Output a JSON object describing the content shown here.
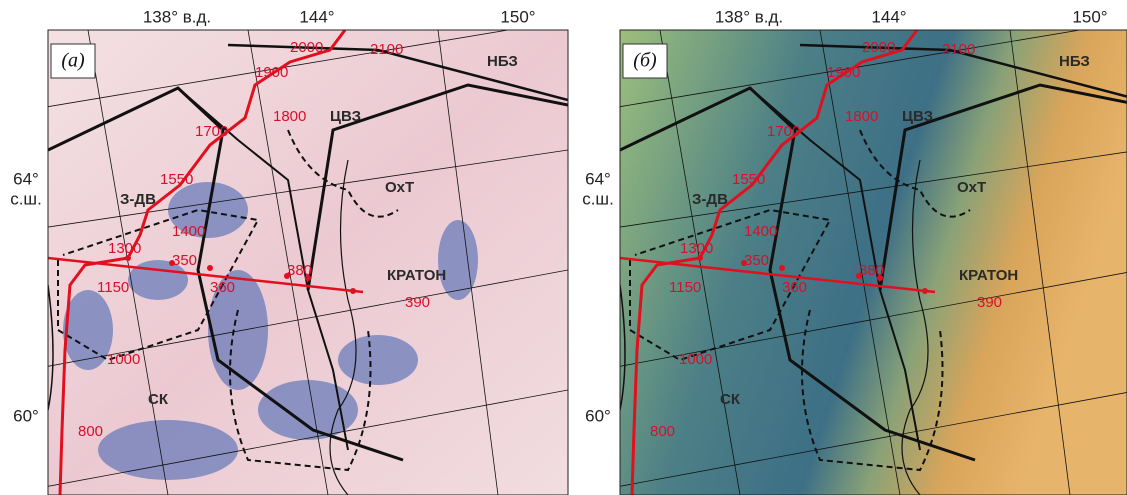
{
  "axis_labels": {
    "top": [
      "138° в.д.",
      "144°",
      "150°"
    ],
    "left": [
      "64°",
      "с.ш.",
      "60°"
    ]
  },
  "panels": [
    {
      "label": "(а)",
      "map_labels": [
        "НБЗ",
        "ЦВЗ",
        "ОхТ",
        "З-ДВ",
        "КРАТОН",
        "СК",
        "2000",
        "2100",
        "1900",
        "1800",
        "1700",
        "1550",
        "1400",
        "1300",
        "1150",
        "1000",
        "800",
        "350",
        "360",
        "380",
        "390"
      ]
    },
    {
      "label": "(б)",
      "map_labels": [
        "НБЗ",
        "ЦВЗ",
        "ОхТ",
        "З-ДВ",
        "КРАТОН",
        "СК",
        "2000",
        "2100",
        "1900",
        "1800",
        "1700",
        "1550",
        "1400",
        "1300",
        "1150",
        "1000",
        "800",
        "350",
        "360",
        "380",
        "390"
      ]
    }
  ]
}
